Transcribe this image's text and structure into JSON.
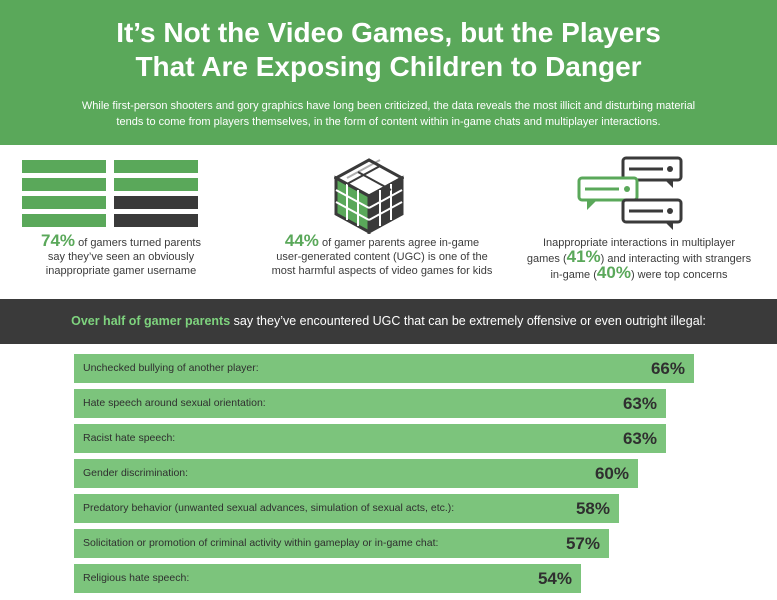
{
  "header": {
    "title_line1": "It’s Not the Video Games, but the Players",
    "title_line2": "That Are Exposing Children to Danger",
    "subtitle_line1": "While first-person shooters and gory graphics have long been criticized, the data reveals the most illicit and disturbing material",
    "subtitle_line2": "tends to come from players themselves, in the form of content within in-game chats and multiplayer interactions.",
    "bg_color": "#5aa85a"
  },
  "stats": [
    {
      "icon": "username-bars-icon",
      "value": "74%",
      "line1_rest": " of gamers turned parents",
      "line2": "say they’ve seen an obviously",
      "line3": "inappropriate gamer username"
    },
    {
      "icon": "cube-blocks-icon",
      "value": "44%",
      "line1_rest": " of gamer parents agree in-game",
      "line2": "user-generated content (UGC) is one of the",
      "line3": "most harmful aspects of video games for kids"
    },
    {
      "icon": "chat-bubbles-icon",
      "line1": "Inappropriate interactions in multiplayer",
      "line2_pre": "games (",
      "value_a": "41%",
      "line2_post": ") and interacting with strangers",
      "line3_pre": "in-game (",
      "value_b": "40%",
      "line3_post": ") were top concerns"
    }
  ],
  "banner": {
    "highlight": "Over half of gamer parents",
    "rest": " say they’ve encountered UGC that can be extremely offensive or even outright illegal:"
  },
  "colors": {
    "green_header": "#5aa85a",
    "green_accent": "#5aa85a",
    "bar_green": "#7cc47c",
    "dark": "#3a3a3a"
  },
  "chart_data": {
    "type": "bar",
    "orientation": "horizontal",
    "categories": [
      "Unchecked bullying of another player:",
      "Hate speech around sexual orientation:",
      "Racist hate speech:",
      "Gender discrimination:",
      "Predatory behavior (unwanted sexual advances, simulation of sexual acts, etc.):",
      "Solicitation or promotion of criminal activity within gameplay or in-game chat:",
      "Religious hate speech:"
    ],
    "values": [
      66,
      63,
      63,
      60,
      58,
      57,
      54
    ],
    "value_labels": [
      "66%",
      "63%",
      "63%",
      "60%",
      "58%",
      "57%",
      "54%"
    ],
    "unit": "%",
    "xlim": [
      0,
      66
    ],
    "bar_color": "#7cc47c"
  }
}
